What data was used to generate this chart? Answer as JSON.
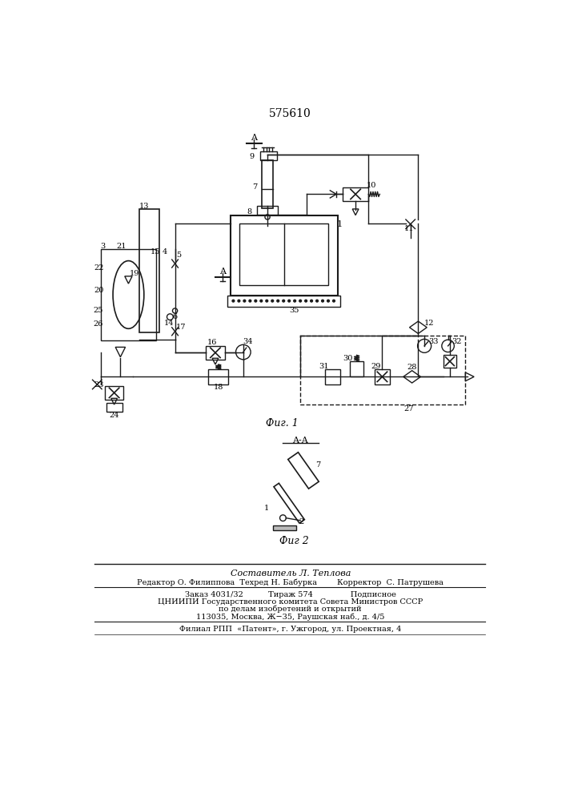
{
  "title": "575610",
  "background_color": "#ffffff",
  "line_color": "#1a1a1a",
  "fig1_caption": "Фиг. 1",
  "fig2_caption": "Фиг 2",
  "section_label": "A-A"
}
